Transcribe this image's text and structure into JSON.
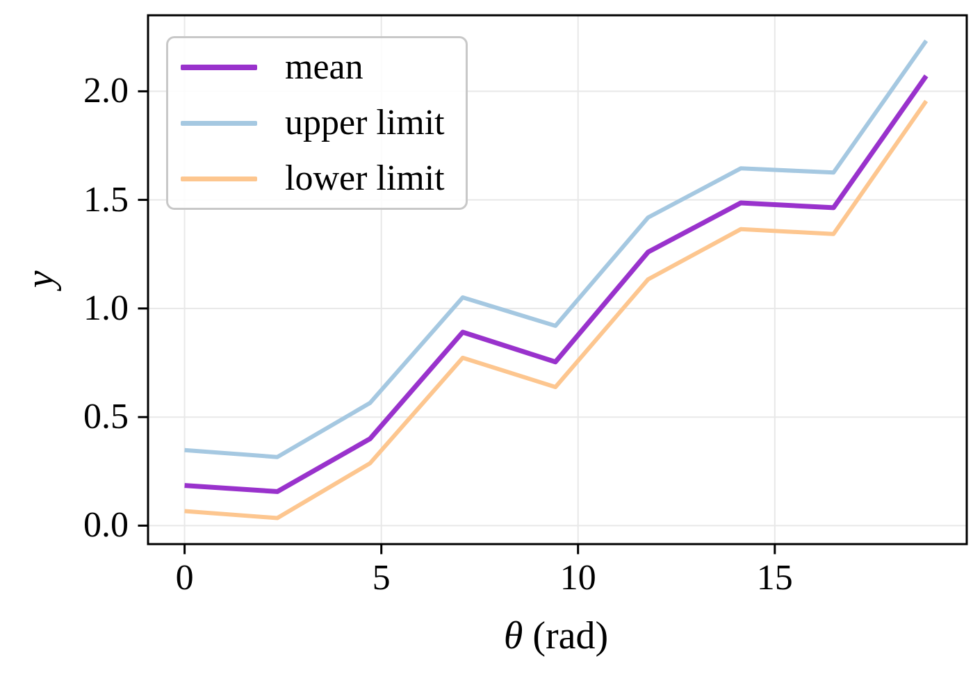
{
  "figure": {
    "background": "#ffffff",
    "grid_color": "#e8e8e8",
    "spine_color": "#000000",
    "tick_color": "#000000",
    "legend_border_color": "#c8c8c8"
  },
  "axes": {
    "ylabel": "y",
    "xlabel_symbol": "θ",
    "xlabel_unit": " (rad)",
    "x_tick_labels": [
      "0",
      "5",
      "10",
      "15"
    ],
    "y_tick_labels": [
      "0.0",
      "0.5",
      "1.0",
      "1.5",
      "2.0"
    ]
  },
  "legend": {
    "entries": [
      {
        "label": "mean",
        "color": "#9932cc",
        "thickness": 8
      },
      {
        "label": "upper limit",
        "color": "#a5c8e1",
        "thickness": 7
      },
      {
        "label": "lower limit",
        "color": "#fdc68f",
        "thickness": 7
      }
    ]
  },
  "chart_data": {
    "type": "line",
    "title": "",
    "xlabel": "θ (rad)",
    "ylabel": "y",
    "x": [
      0.0,
      2.356,
      4.712,
      7.069,
      9.425,
      11.781,
      14.137,
      16.493,
      18.85
    ],
    "series": [
      {
        "name": "mean",
        "color": "#9932cc",
        "width": 7,
        "values": [
          0.185,
          0.157,
          0.4,
          0.891,
          0.754,
          1.26,
          1.486,
          1.464,
          2.071
        ]
      },
      {
        "name": "upper limit",
        "color": "#a5c8e1",
        "width": 6,
        "values": [
          0.348,
          0.316,
          0.565,
          1.051,
          0.92,
          1.419,
          1.645,
          1.626,
          2.233
        ]
      },
      {
        "name": "lower limit",
        "color": "#fdc68f",
        "width": 6,
        "values": [
          0.067,
          0.035,
          0.287,
          0.773,
          0.638,
          1.134,
          1.365,
          1.343,
          1.955
        ]
      }
    ],
    "xticks": [
      0,
      5,
      10,
      15
    ],
    "yticks": [
      0.0,
      0.5,
      1.0,
      1.5,
      2.0
    ],
    "xlim": [
      -0.93,
      19.88
    ],
    "ylim": [
      -0.085,
      2.35
    ],
    "grid": true,
    "legend_position": "upper left"
  }
}
